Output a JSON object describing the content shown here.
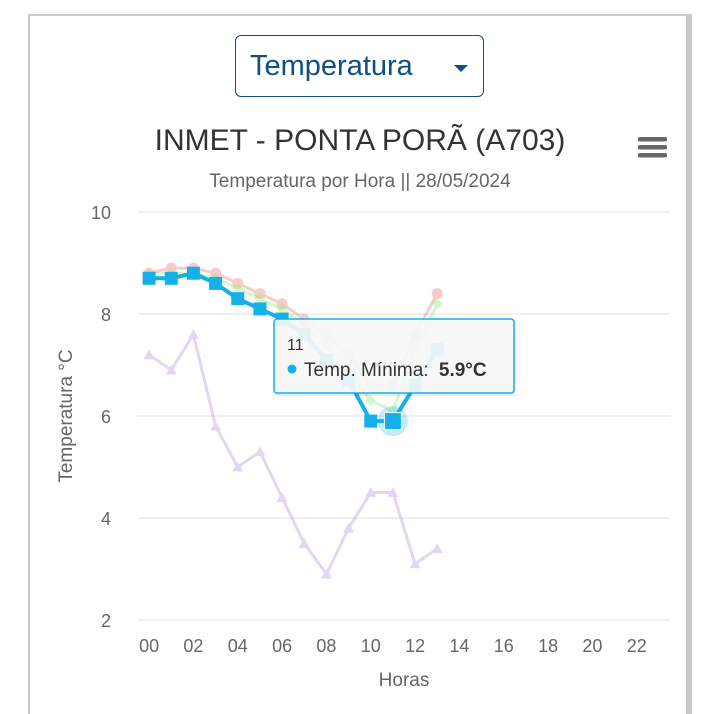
{
  "selector": {
    "value": "Temperatura"
  },
  "chart_data": {
    "type": "line",
    "title": "INMET - PONTA PORÃ (A703)",
    "subtitle": "Temperatura por Hora || 28/05/2024",
    "xlabel": "Horas",
    "ylabel": "Temperatura °C",
    "xlim": [
      -0.5,
      23.5
    ],
    "ylim": [
      2,
      10
    ],
    "x_ticks": [
      "00",
      "02",
      "04",
      "06",
      "08",
      "10",
      "12",
      "14",
      "16",
      "18",
      "20",
      "22"
    ],
    "y_ticks": [
      2,
      4,
      6,
      8,
      10
    ],
    "grid": true,
    "series": [
      {
        "color": "#f08080",
        "marker": "circle",
        "faded": true,
        "x": [
          0,
          1,
          2,
          3,
          4,
          5,
          6,
          7,
          8,
          9,
          10,
          11,
          12,
          13
        ],
        "values": [
          8.8,
          8.9,
          8.9,
          8.8,
          8.6,
          8.4,
          8.2,
          7.9,
          7.6,
          7.2,
          6.6,
          6.6,
          7.6,
          8.4
        ]
      },
      {
        "color": "#90ed7d",
        "marker": "diamond",
        "faded": true,
        "x": [
          0,
          1,
          2,
          3,
          4,
          5,
          6,
          7,
          8,
          9,
          10,
          11,
          12,
          13
        ],
        "values": [
          8.8,
          8.8,
          8.8,
          8.7,
          8.5,
          8.3,
          8.1,
          7.8,
          7.4,
          6.9,
          6.3,
          6.1,
          7.3,
          8.2
        ]
      },
      {
        "name": "Temp. Mínima",
        "color": "#15b0e8",
        "marker": "square",
        "faded": false,
        "x": [
          0,
          1,
          2,
          3,
          4,
          5,
          6,
          7,
          8,
          9,
          10,
          11,
          12,
          13
        ],
        "values": [
          8.7,
          8.7,
          8.8,
          8.6,
          8.3,
          8.1,
          7.9,
          7.6,
          7.1,
          6.7,
          5.9,
          5.9,
          6.6,
          7.3
        ]
      },
      {
        "color": "#b79be0",
        "marker": "triangle",
        "faded": true,
        "x": [
          0,
          1,
          2,
          3,
          4,
          5,
          6,
          7,
          8,
          9,
          10,
          11,
          12,
          13
        ],
        "values": [
          7.2,
          6.9,
          7.6,
          5.8,
          5.0,
          5.3,
          4.4,
          3.5,
          2.9,
          3.8,
          4.5,
          4.5,
          3.1,
          3.4
        ]
      }
    ],
    "tooltip": {
      "header": "11",
      "series_label": "Temp. Mínima:",
      "value": "5.9°C",
      "x": 11,
      "y": 5.9
    }
  }
}
